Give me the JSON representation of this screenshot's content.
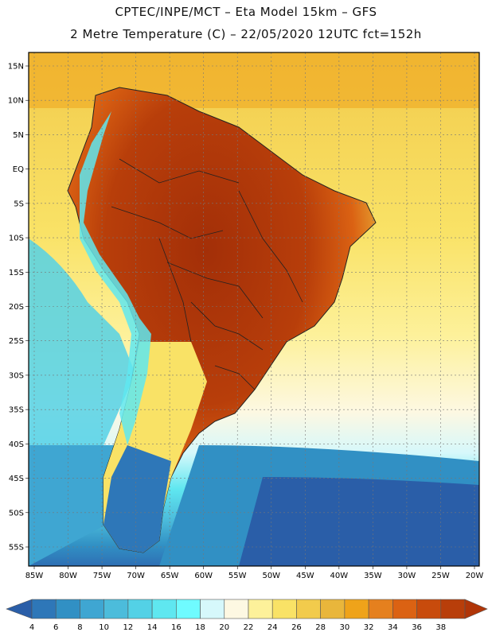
{
  "header": {
    "line1": "CPTEC/INPE/MCT –  Eta Model 15km – GFS",
    "line2": "2 Metre Temperature (C) – 22/05/2020 12UTC fct=152h"
  },
  "map": {
    "lat_labels": [
      "15N",
      "10N",
      "5N",
      "EQ",
      "5S",
      "10S",
      "15S",
      "20S",
      "25S",
      "30S",
      "35S",
      "40S",
      "45S",
      "50S",
      "55S"
    ],
    "lon_labels": [
      "85W",
      "80W",
      "75W",
      "70W",
      "65W",
      "60W",
      "55W",
      "50W",
      "45W",
      "40W",
      "35W",
      "30W",
      "25W",
      "20W"
    ]
  },
  "legend": {
    "ticks": [
      "4",
      "6",
      "8",
      "10",
      "12",
      "14",
      "16",
      "18",
      "20",
      "22",
      "24",
      "26",
      "28",
      "30",
      "32",
      "34",
      "36",
      "38"
    ],
    "colors": [
      "#2a5ea8",
      "#2e77b8",
      "#3190c4",
      "#3fa6d2",
      "#4cbcdb",
      "#53d1e6",
      "#5fe7f0",
      "#6ffbff",
      "#d6f8fb",
      "#fdf8e2",
      "#fdf19a",
      "#f9e266",
      "#f2cb4c",
      "#e9b63b",
      "#efa31a",
      "#e5801e",
      "#db6213",
      "#c84b0c",
      "#b83e0a",
      "#a32f08"
    ],
    "low_arrow_color": "#2a5ea8",
    "high_arrow_color": "#b03508"
  }
}
